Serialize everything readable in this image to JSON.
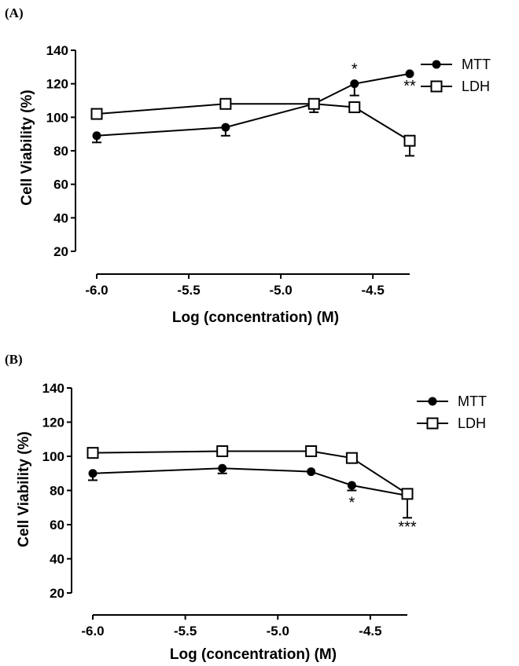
{
  "chart_data": [
    {
      "type": "line",
      "panel_label": "(A)",
      "xlabel": "Log (concentration) (M)",
      "ylabel": "Cell Viability (%)",
      "xlim": [
        -6.0,
        -4.3
      ],
      "ylim": [
        20,
        140
      ],
      "x_ticks": [
        "-6.0",
        "-5.5",
        "-5.0",
        "-4.5"
      ],
      "y_ticks": [
        "20",
        "40",
        "60",
        "80",
        "100",
        "120",
        "140"
      ],
      "legend_position": "right",
      "series": [
        {
          "name": "MTT",
          "marker": "filled-circle",
          "x": [
            -6.0,
            -5.3,
            -4.82,
            -4.6,
            -4.3
          ],
          "y": [
            89,
            94,
            108,
            120,
            126
          ],
          "error": [
            4,
            5,
            0,
            7,
            0
          ],
          "significance": [
            "",
            "",
            "",
            "*",
            "**"
          ]
        },
        {
          "name": "LDH",
          "marker": "open-square",
          "x": [
            -6.0,
            -5.3,
            -4.82,
            -4.6,
            -4.3
          ],
          "y": [
            102,
            108,
            108,
            106,
            86
          ],
          "error": [
            0,
            0,
            5,
            0,
            9
          ],
          "significance": [
            "",
            "",
            "",
            "",
            ""
          ]
        }
      ]
    },
    {
      "type": "line",
      "panel_label": "(B)",
      "xlabel": "Log (concentration) (M)",
      "ylabel": "Cell Viability (%)",
      "xlim": [
        -6.0,
        -4.3
      ],
      "ylim": [
        20,
        140
      ],
      "x_ticks": [
        "-6.0",
        "-5.5",
        "-5.0",
        "-4.5"
      ],
      "y_ticks": [
        "20",
        "40",
        "60",
        "80",
        "100",
        "120",
        "140"
      ],
      "legend_position": "right",
      "series": [
        {
          "name": "MTT",
          "marker": "filled-circle",
          "x": [
            -6.0,
            -5.3,
            -4.82,
            -4.6,
            -4.3
          ],
          "y": [
            90,
            93,
            91,
            83,
            77
          ],
          "error": [
            4,
            3,
            0,
            3,
            0
          ],
          "significance": [
            "",
            "",
            "",
            "*",
            "***"
          ]
        },
        {
          "name": "LDH",
          "marker": "open-square",
          "x": [
            -6.0,
            -5.3,
            -4.82,
            -4.6,
            -4.3
          ],
          "y": [
            102,
            103,
            103,
            99,
            78
          ],
          "error": [
            0,
            0,
            0,
            0,
            14
          ],
          "significance": [
            "",
            "",
            "",
            "",
            ""
          ]
        }
      ]
    }
  ]
}
